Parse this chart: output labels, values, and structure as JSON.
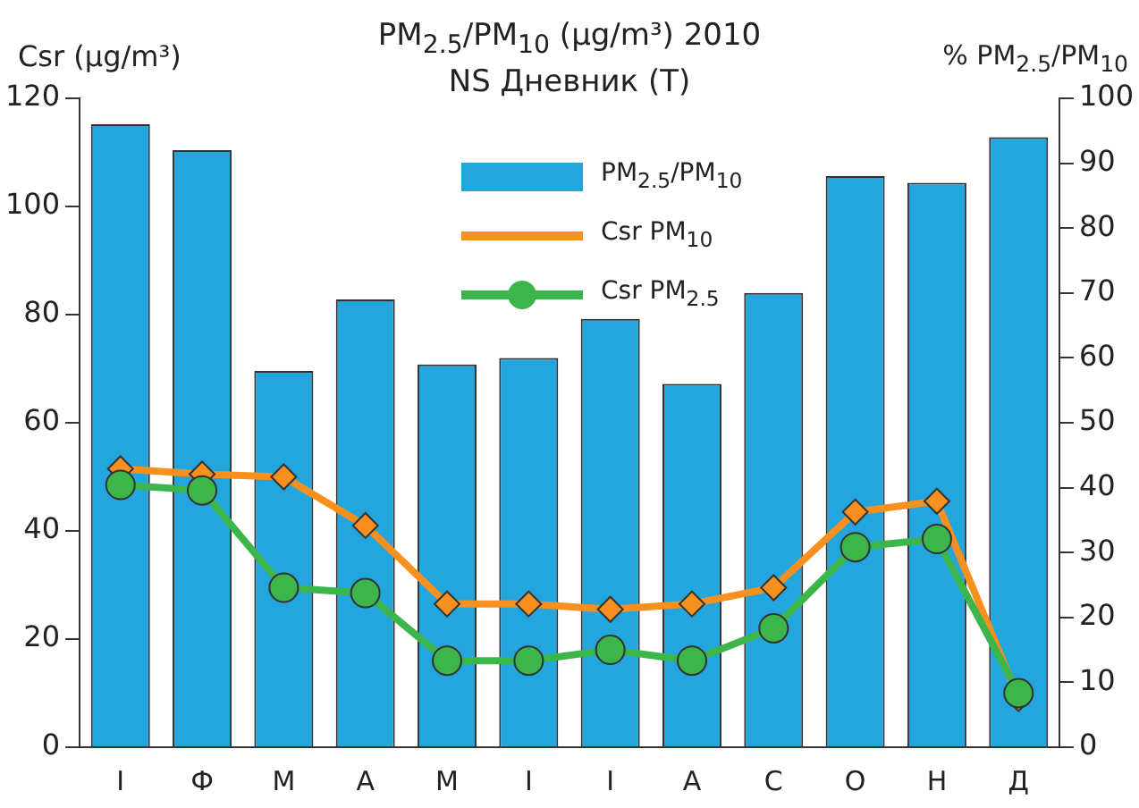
{
  "chart_data": {
    "type": "bar",
    "title": "PM$_{2.5}$/PM$_{10}$ (µg/m³) 2010",
    "subtitle": "NS Дневник (T)",
    "ylabel": "Csr (µg/m³)",
    "y2label": "% PM$_{2.5}$/PM$_{10}$",
    "categories": [
      "I",
      "Ф",
      "М",
      "А",
      "М",
      "I",
      "I",
      "А",
      "С",
      "О",
      "Н",
      "Д"
    ],
    "series": [
      {
        "name": "PM$_{2.5}$/PM$_{10}$",
        "axis": "y2",
        "color": "#23a6de",
        "values": [
          96,
          92,
          58,
          69,
          59,
          60,
          66,
          56,
          70,
          88,
          87,
          94
        ]
      },
      {
        "name": "Csr PM$_{10}$",
        "type": "line",
        "marker": "diamond",
        "color": "#f7901e",
        "values": [
          51.5,
          50.5,
          50,
          41,
          26.5,
          26.5,
          25.5,
          26.5,
          29.5,
          43.5,
          45.5,
          9
        ]
      },
      {
        "name": "Csr PM$_{2.5}$",
        "type": "line",
        "marker": "circle",
        "color": "#3cb54a",
        "values": [
          48.5,
          47.5,
          29.5,
          28.5,
          16,
          16,
          18,
          16,
          22,
          37,
          38.5,
          10
        ]
      }
    ],
    "ylim": [
      0,
      120
    ],
    "yticks": [
      0,
      20,
      40,
      60,
      80,
      100,
      120
    ],
    "y2lim": [
      0,
      100
    ],
    "y2ticks": [
      0,
      10,
      20,
      30,
      40,
      50,
      60,
      70,
      80,
      90,
      100
    ],
    "grid": false,
    "legend": "top"
  }
}
